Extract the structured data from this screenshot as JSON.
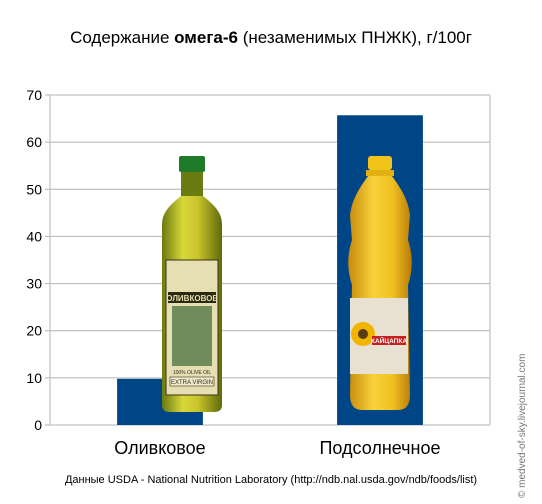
{
  "chart_data": {
    "type": "bar",
    "title_pre": "Содержание ",
    "title_bold": "омега-6",
    "title_post": " (незаменимых ПНЖК), г/100г",
    "categories": [
      "Оливковое",
      "Подсолнечное"
    ],
    "values": [
      9.8,
      65.7
    ],
    "ylim": [
      0,
      70
    ],
    "yticks": [
      0,
      10,
      20,
      30,
      40,
      50,
      60,
      70
    ],
    "grid": true,
    "bar_color": "#004586",
    "images": [
      {
        "name": "olive-oil-bottle-image",
        "label_text": "ОЛИВКОВОЕ",
        "sub_text": "EXTRA VIRGIN",
        "sub2": "100% OLIVE OIL"
      },
      {
        "name": "sunflower-oil-bottle-image",
        "label_text": "КАЙЦАПКА"
      }
    ]
  },
  "source": "Данные USDA - National Nutrition Laboratory (http://ndb.nal.usda.gov/ndb/foods/list)",
  "watermark": "© medved-of-sky.livejournal.com"
}
